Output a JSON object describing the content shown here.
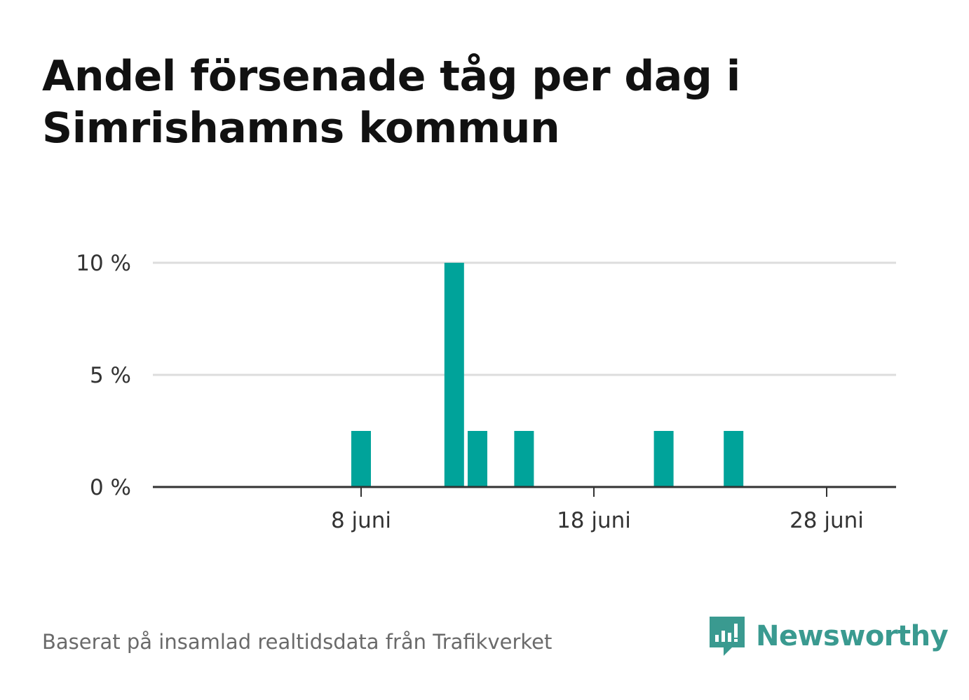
{
  "title": "Andel försenade tåg per dag i Simrishamns kommun",
  "source": "Baserat på insamlad realtidsdata från Trafikverket",
  "brand": {
    "name": "Newsworthy",
    "icon": "newsworthy-logo-icon",
    "color": "#3a9a90"
  },
  "colors": {
    "bar": "#00a39a",
    "grid": "#dddddd",
    "axis": "#333333"
  },
  "chart_data": {
    "type": "bar",
    "x": [
      1,
      2,
      3,
      4,
      5,
      6,
      7,
      8,
      9,
      10,
      11,
      12,
      13,
      14,
      15,
      16,
      17,
      18,
      19,
      20,
      21,
      22,
      23,
      24,
      25,
      26,
      27,
      28,
      29,
      30
    ],
    "values": [
      0,
      0,
      0,
      0,
      0,
      0,
      0,
      2.5,
      0,
      0,
      0,
      10,
      2.5,
      0,
      2.5,
      0,
      0,
      0,
      0,
      0,
      2.5,
      0,
      0,
      2.5,
      0,
      0,
      0,
      0,
      0,
      0
    ],
    "xunit": "juni",
    "xticks": [
      {
        "value": 8,
        "label": "8 juni"
      },
      {
        "value": 18,
        "label": "18 juni"
      },
      {
        "value": 28,
        "label": "28 juni"
      }
    ],
    "yticks": [
      {
        "value": 0,
        "label": "0 %"
      },
      {
        "value": 5,
        "label": "5 %"
      },
      {
        "value": 10,
        "label": "10 %"
      }
    ],
    "ylim": [
      0,
      10
    ],
    "xlim": [
      0,
      30
    ],
    "xlabel": "",
    "ylabel": "",
    "grid": true,
    "legend": "none"
  }
}
